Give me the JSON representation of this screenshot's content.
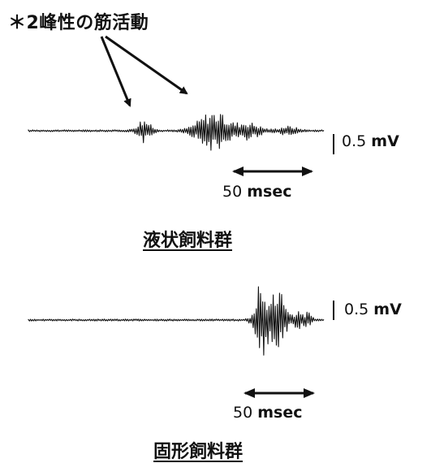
{
  "annotation": "＊2峰性の筋活動",
  "panels": [
    {
      "group_label": "液状飼料群",
      "amplitude_scale": {
        "value": "0.5",
        "unit": "mV"
      },
      "time_scale": {
        "value": "50",
        "unit": "msec"
      }
    },
    {
      "group_label": "固形飼料群",
      "amplitude_scale": {
        "value": "0.5",
        "unit": "mV"
      },
      "time_scale": {
        "value": "50",
        "unit": "msec"
      }
    }
  ],
  "colors": {
    "ink": "#111111",
    "background": "#ffffff"
  }
}
